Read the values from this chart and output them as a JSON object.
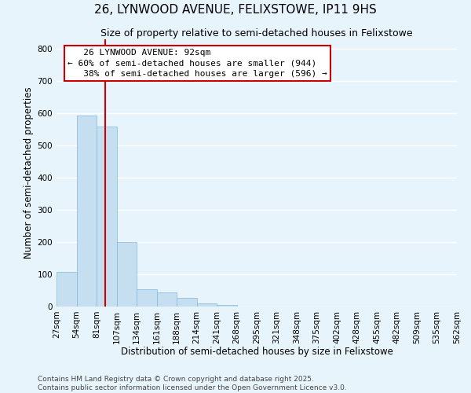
{
  "title": "26, LYNWOOD AVENUE, FELIXSTOWE, IP11 9HS",
  "subtitle": "Size of property relative to semi-detached houses in Felixstowe",
  "xlabel": "Distribution of semi-detached houses by size in Felixstowe",
  "ylabel": "Number of semi-detached properties",
  "bar_color": "#c5dff0",
  "bar_edge_color": "#85b8d8",
  "background_color": "#e8f4fc",
  "grid_color": "#ffffff",
  "bin_labels": [
    "27sqm",
    "54sqm",
    "81sqm",
    "107sqm",
    "134sqm",
    "161sqm",
    "188sqm",
    "214sqm",
    "241sqm",
    "268sqm",
    "295sqm",
    "321sqm",
    "348sqm",
    "375sqm",
    "402sqm",
    "428sqm",
    "455sqm",
    "482sqm",
    "509sqm",
    "535sqm",
    "562sqm"
  ],
  "bar_values": [
    107,
    592,
    560,
    200,
    53,
    44,
    28,
    10,
    5,
    0,
    0,
    0,
    0,
    0,
    0,
    0,
    0,
    0,
    0,
    0
  ],
  "ylim": [
    0,
    830
  ],
  "yticks": [
    0,
    100,
    200,
    300,
    400,
    500,
    600,
    700,
    800
  ],
  "property_label": "26 LYNWOOD AVENUE: 92sqm",
  "pct_smaller": "60%",
  "pct_smaller_count": 944,
  "pct_larger": "38%",
  "pct_larger_count": 596,
  "footer_line1": "Contains HM Land Registry data © Crown copyright and database right 2025.",
  "footer_line2": "Contains public sector information licensed under the Open Government Licence v3.0.",
  "title_fontsize": 11,
  "subtitle_fontsize": 9,
  "axis_label_fontsize": 8.5,
  "tick_fontsize": 7.5,
  "annotation_fontsize": 8,
  "footer_fontsize": 6.5
}
